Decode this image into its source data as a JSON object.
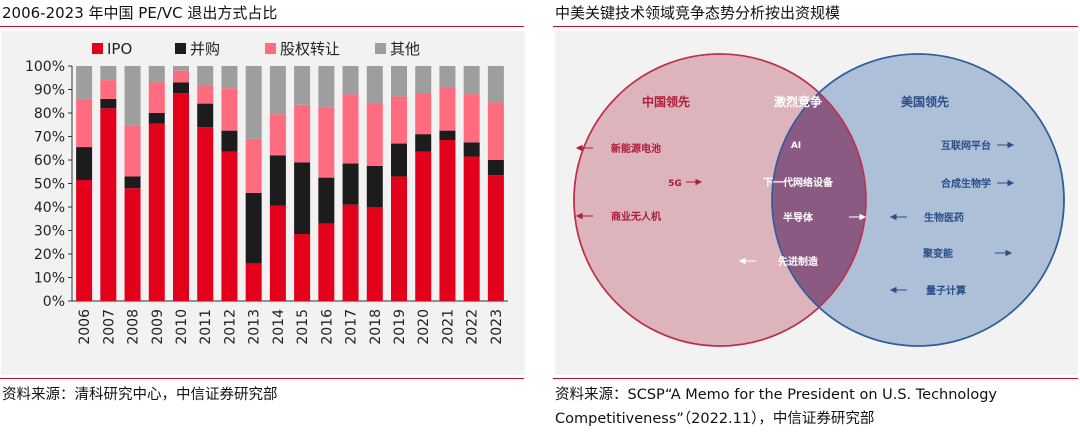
{
  "left": {
    "title": "2006-2023 年中国 PE/VC 退出方式占比",
    "source": "资料来源：清科研究中心，中信证券研究部"
  },
  "right": {
    "title": "中美关键技术领域竞争态势分析按出资规模",
    "source_line1": "资料来源：SCSP“A Memo for the President on U.S. Technology",
    "source_line2": "Competitiveness”（2022.11），中信证券研究部"
  },
  "chart_data": [
    {
      "type": "bar",
      "stacked": true,
      "title": "2006-2023 年中国 PE/VC 退出方式占比",
      "categories": [
        "2006",
        "2007",
        "2008",
        "2009",
        "2010",
        "2011",
        "2012",
        "2013",
        "2014",
        "2015",
        "2016",
        "2017",
        "2018",
        "2019",
        "2020",
        "2021",
        "2022",
        "2023"
      ],
      "series": [
        {
          "name": "IPO",
          "color": "#e3001b",
          "values": [
            51.5,
            82,
            48,
            75.5,
            88.5,
            74,
            63.5,
            16,
            40.5,
            28.5,
            33,
            41,
            40,
            53,
            63.5,
            68.5,
            61.5,
            53.5
          ]
        },
        {
          "name": "并购",
          "color": "#1c1c1c",
          "values": [
            14,
            4,
            5,
            4.5,
            4.5,
            10,
            9,
            30,
            21.5,
            30.5,
            19.5,
            17.5,
            17.5,
            14,
            7.5,
            4,
            6,
            6.5
          ]
        },
        {
          "name": "股权转让",
          "color": "#ff6b7f",
          "values": [
            20.5,
            8,
            21.5,
            13,
            5,
            7.5,
            18,
            23,
            17.5,
            24.5,
            30,
            29.5,
            26.5,
            20,
            17.5,
            18.5,
            20.5,
            24.5
          ]
        },
        {
          "name": "其他",
          "color": "#9e9e9e",
          "values": [
            14,
            6,
            25.5,
            7,
            2,
            8.5,
            9.5,
            31,
            20.5,
            16.5,
            17.5,
            12,
            16,
            13,
            11.5,
            9,
            12,
            15.5
          ]
        }
      ],
      "ylim": [
        0,
        100
      ],
      "yticks": [
        "0%",
        "10%",
        "20%",
        "30%",
        "40%",
        "50%",
        "60%",
        "70%",
        "80%",
        "90%",
        "100%"
      ],
      "grid": false,
      "legend": "top"
    },
    {
      "type": "venn",
      "sets": [
        {
          "label": "中国领先",
          "color": "#c0304a",
          "items": [
            "新能源电池",
            "5G",
            "商业无人机"
          ]
        },
        {
          "label": "美国领先",
          "color": "#2f5e9b",
          "items": [
            "互联网平台",
            "合成生物学",
            "生物医药",
            "聚变能",
            "量子计算"
          ]
        }
      ],
      "intersection": {
        "label": "激烈竞争",
        "items": [
          "AI",
          "下一代网络设备",
          "半导体",
          "先进制造"
        ]
      }
    }
  ]
}
